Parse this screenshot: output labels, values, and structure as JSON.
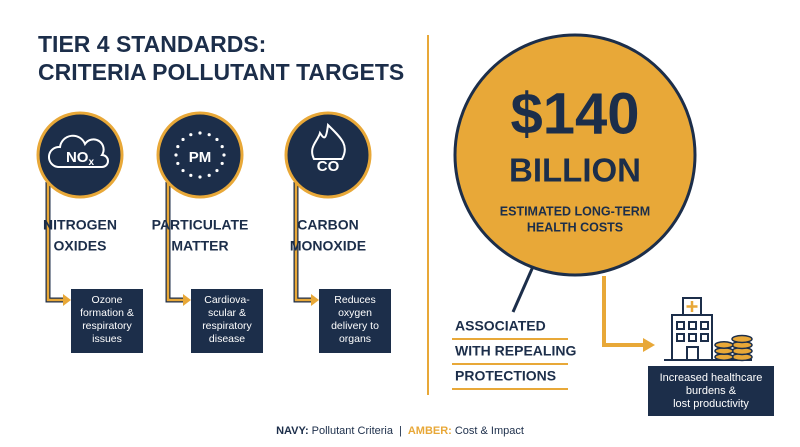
{
  "title": [
    "TIER 4 STANDARDS:",
    "CRITERIA POLLUTANT TARGETS"
  ],
  "pollutants": [
    {
      "icon": "NO",
      "icon_sub": "x",
      "label": [
        "NITROGEN",
        "OXIDES"
      ],
      "effect": [
        "Ozone",
        "formation &",
        "respiratory",
        "issues"
      ]
    },
    {
      "icon": "PM",
      "label": [
        "PARTICULATE",
        "MATTER"
      ],
      "effect": [
        "Cardiova-",
        "scular &",
        "respiratory",
        "disease"
      ]
    },
    {
      "icon": "CO",
      "label": [
        "CARBON",
        "MONOXIDE"
      ],
      "effect": [
        "Reduces",
        "oxygen",
        "delivery to",
        "organs"
      ]
    }
  ],
  "cost": {
    "amount": "$140",
    "unit": "BILLION",
    "description": [
      "ESTIMATED LONG-TERM",
      "HEALTH COSTS"
    ],
    "association": [
      "ASSOCIATED",
      "WITH REPEALING",
      "PROTECTIONS"
    ],
    "impact": [
      "Increased healthcare",
      "burdens &",
      "lost productivity"
    ]
  },
  "legend": {
    "items": [
      {
        "key": "NAVY:",
        "text": "Pollutant Criteria"
      },
      {
        "key": "AMBER:",
        "text": "Cost & Impact"
      }
    ],
    "separator": "|"
  }
}
